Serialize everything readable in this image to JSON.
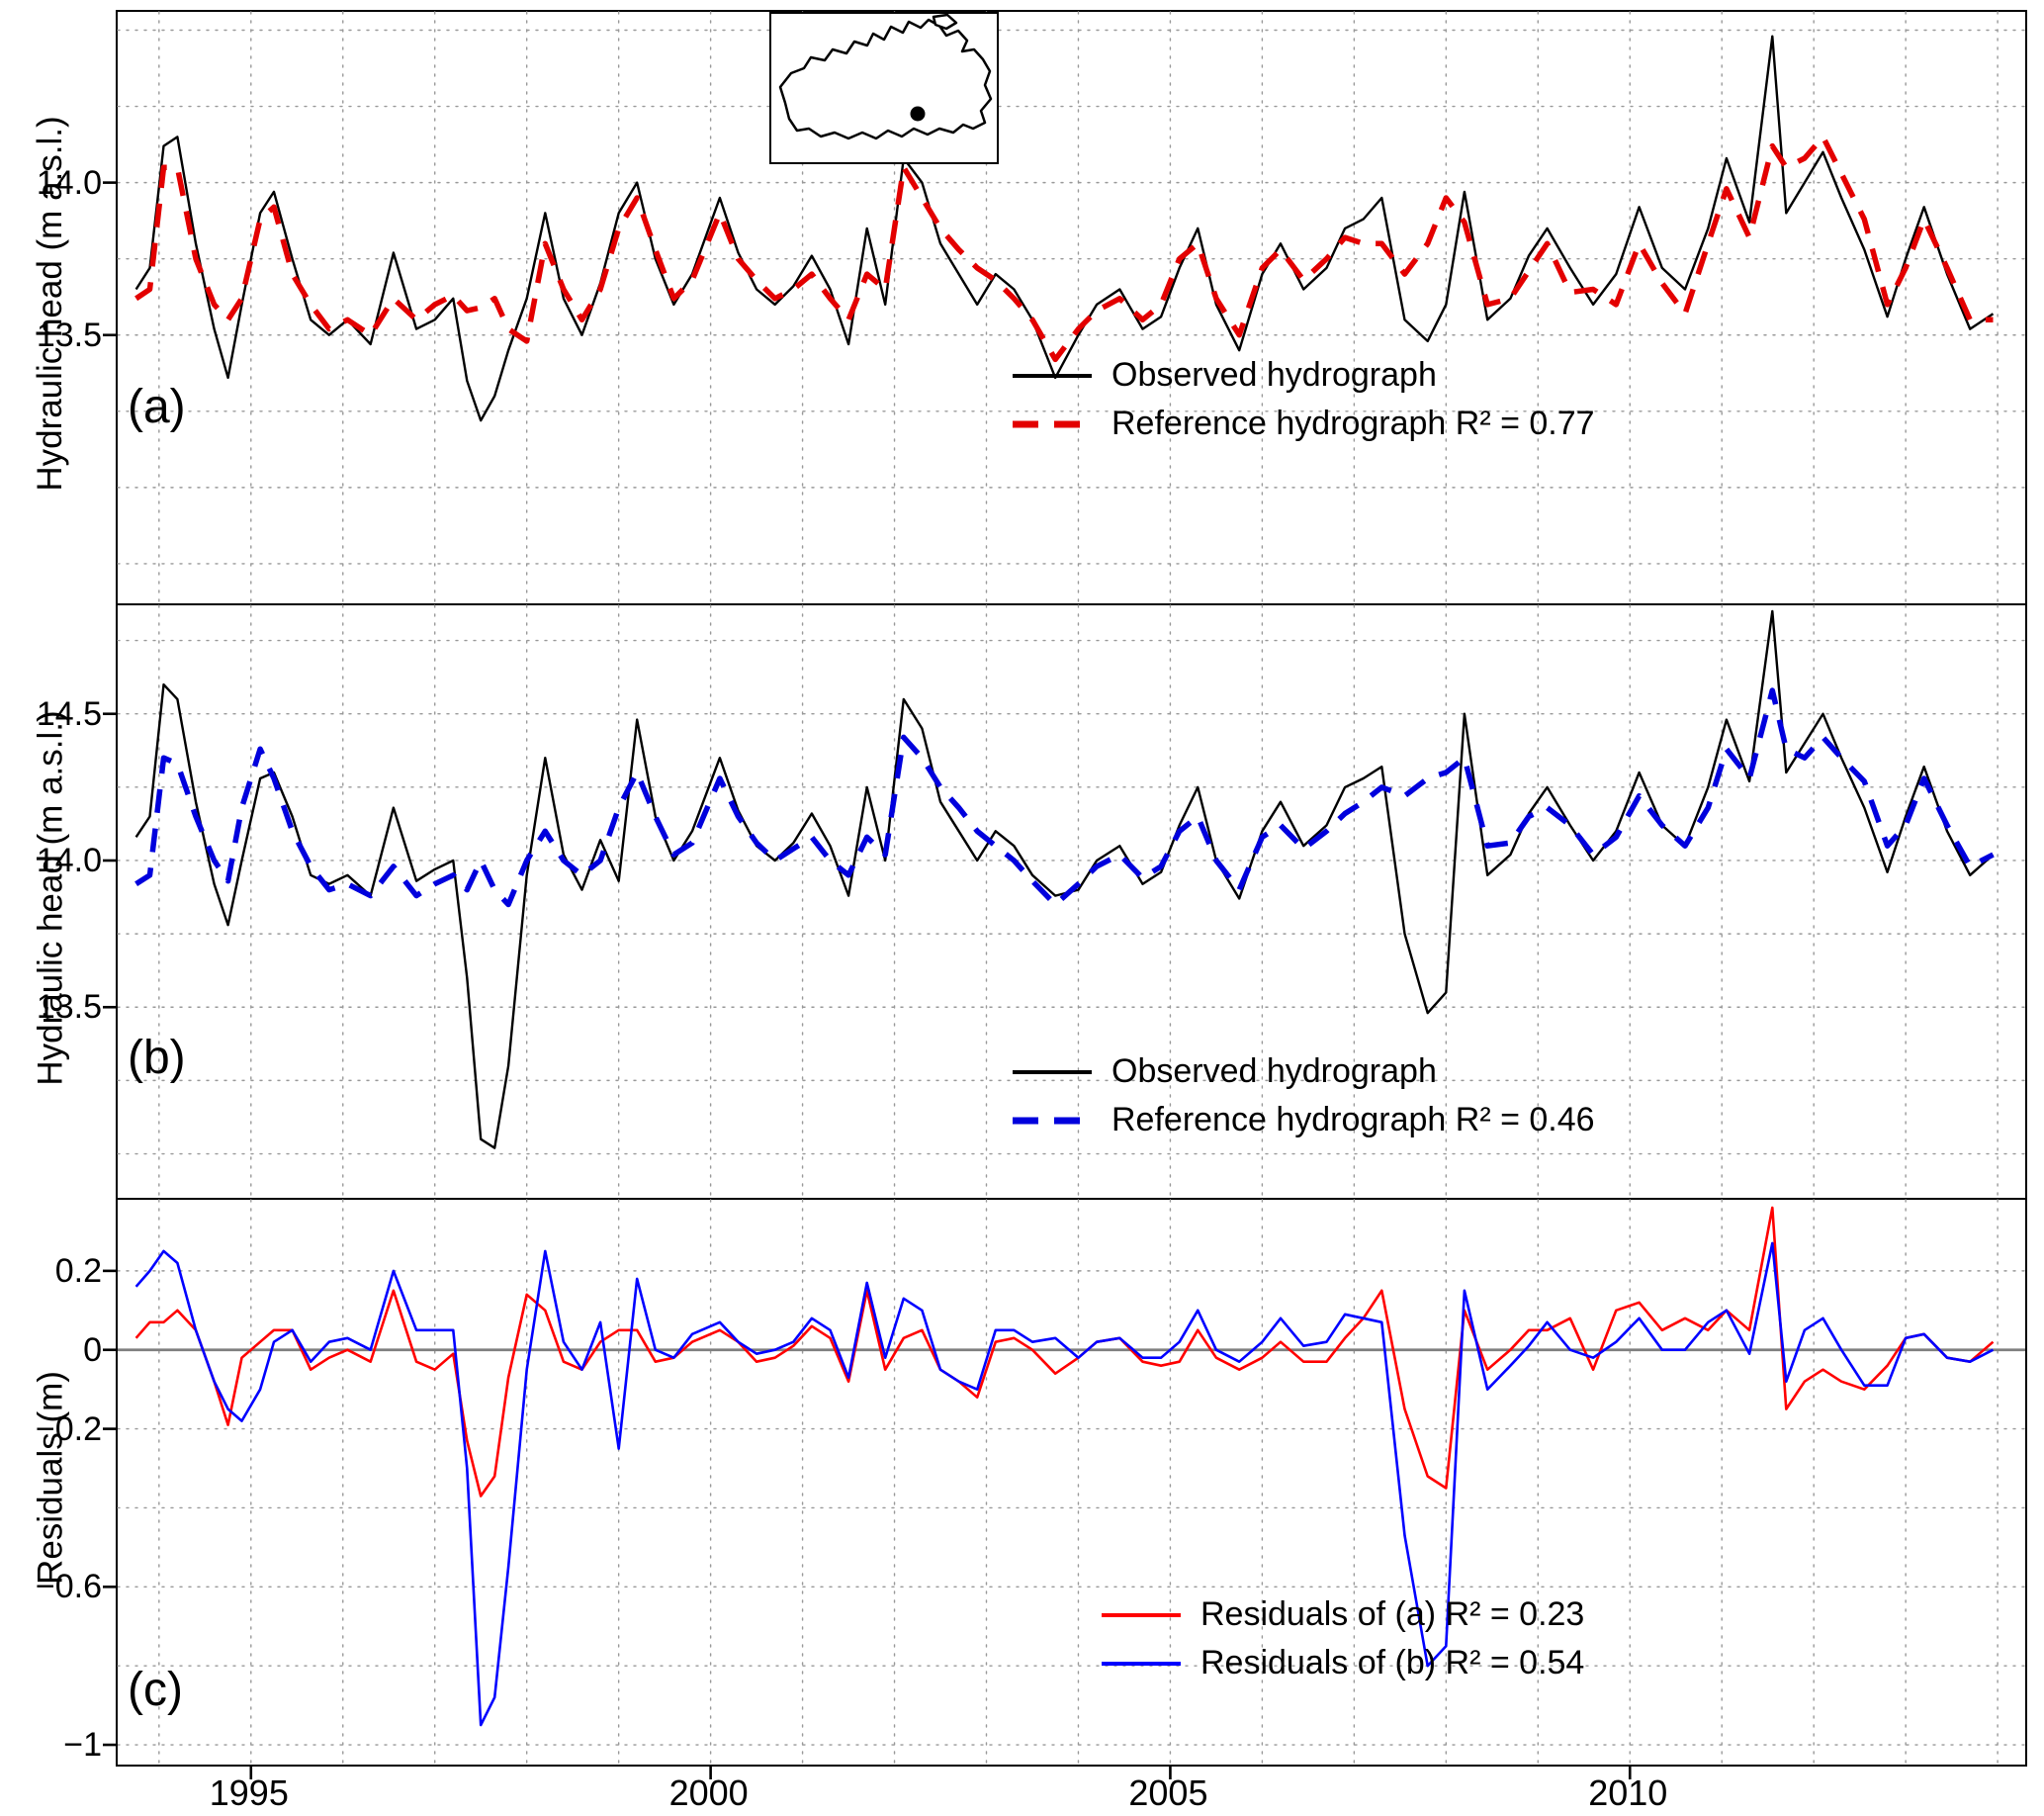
{
  "figure": {
    "grid_color": "#999999",
    "zero_line_color": "#7f7f7f",
    "background": "#ffffff"
  },
  "chart_data": {
    "type": "line",
    "title": "",
    "x_years": [
      1993.75,
      1993.9,
      1994.05,
      1994.2,
      1994.4,
      1994.6,
      1994.75,
      1994.9,
      1995.1,
      1995.25,
      1995.45,
      1995.65,
      1995.85,
      1996.05,
      1996.3,
      1996.55,
      1996.8,
      1997.0,
      1997.2,
      1997.35,
      1997.5,
      1997.65,
      1997.8,
      1998.0,
      1998.2,
      1998.4,
      1998.6,
      1998.8,
      1999.0,
      1999.2,
      1999.4,
      1999.6,
      1999.8,
      2000.1,
      2000.3,
      2000.5,
      2000.7,
      2000.9,
      2001.1,
      2001.3,
      2001.5,
      2001.7,
      2001.9,
      2002.1,
      2002.3,
      2002.5,
      2002.7,
      2002.9,
      2003.1,
      2003.3,
      2003.5,
      2003.75,
      2004.0,
      2004.2,
      2004.45,
      2004.7,
      2004.9,
      2005.1,
      2005.3,
      2005.5,
      2005.75,
      2006.0,
      2006.2,
      2006.45,
      2006.7,
      2006.9,
      2007.1,
      2007.3,
      2007.55,
      2007.8,
      2008.0,
      2008.2,
      2008.45,
      2008.7,
      2008.9,
      2009.1,
      2009.35,
      2009.6,
      2009.85,
      2010.1,
      2010.35,
      2010.6,
      2010.85,
      2011.05,
      2011.3,
      2011.55,
      2011.7,
      2011.9,
      2012.1,
      2012.3,
      2012.55,
      2012.8,
      2013.0,
      2013.2,
      2013.45,
      2013.7,
      2013.95
    ],
    "xlim": [
      1993.55,
      2014.3
    ],
    "grid_years": [
      1994,
      2014
    ],
    "xticks": [
      {
        "v": 1995,
        "label": "1995"
      },
      {
        "v": 2000,
        "label": "2000"
      },
      {
        "v": 2005,
        "label": "2005"
      },
      {
        "v": 2010,
        "label": "2010"
      }
    ],
    "panels": [
      {
        "panel": "a",
        "letter": "(a)",
        "ylabel": "Hydraulic head (m a.s.l.)",
        "ylim": [
          12.62,
          14.56
        ],
        "ygrid_step": 0.25,
        "yticks": [
          {
            "v": 14.0,
            "label": "14.0"
          },
          {
            "v": 13.5,
            "label": "13.5"
          }
        ],
        "zero_line": false,
        "series": [
          {
            "name": "Observed hydrograph",
            "legend": "Observed hydrograph",
            "color": "#000000",
            "style": "solid",
            "width": 2.4,
            "values": [
              13.65,
              13.72,
              14.12,
              14.15,
              13.8,
              13.52,
              13.36,
              13.6,
              13.9,
              13.97,
              13.75,
              13.55,
              13.5,
              13.55,
              13.47,
              13.77,
              13.52,
              13.55,
              13.62,
              13.35,
              13.22,
              13.3,
              13.45,
              13.62,
              13.9,
              13.62,
              13.5,
              13.67,
              13.9,
              14.0,
              13.75,
              13.6,
              13.7,
              13.95,
              13.77,
              13.65,
              13.6,
              13.66,
              13.76,
              13.65,
              13.47,
              13.85,
              13.6,
              14.08,
              14.0,
              13.8,
              13.7,
              13.6,
              13.7,
              13.65,
              13.55,
              13.36,
              13.5,
              13.6,
              13.65,
              13.52,
              13.56,
              13.72,
              13.85,
              13.6,
              13.45,
              13.7,
              13.8,
              13.65,
              13.72,
              13.85,
              13.88,
              13.95,
              13.55,
              13.48,
              13.6,
              13.97,
              13.55,
              13.62,
              13.76,
              13.85,
              13.72,
              13.6,
              13.7,
              13.92,
              13.72,
              13.65,
              13.85,
              14.08,
              13.87,
              14.48,
              13.9,
              14.0,
              14.1,
              13.95,
              13.78,
              13.56,
              13.75,
              13.92,
              13.7,
              13.52,
              13.57
            ]
          },
          {
            "name": "Reference hydrograph",
            "legend": "Reference hydrograph R² = 0.77",
            "r2": 0.77,
            "color": "#e30000",
            "style": "dashed",
            "width": 5.5,
            "values": [
              13.62,
              13.65,
              14.05,
              14.05,
              13.75,
              13.6,
              13.55,
              13.62,
              13.88,
              13.92,
              13.7,
              13.6,
              13.52,
              13.55,
              13.5,
              13.62,
              13.55,
              13.6,
              13.63,
              13.58,
              13.59,
              13.62,
              13.52,
              13.48,
              13.8,
              13.65,
              13.55,
              13.65,
              13.85,
              13.95,
              13.78,
              13.62,
              13.68,
              13.9,
              13.75,
              13.68,
              13.62,
              13.65,
              13.7,
              13.62,
              13.55,
              13.7,
              13.65,
              14.05,
              13.95,
              13.85,
              13.78,
              13.72,
              13.68,
              13.62,
              13.55,
              13.42,
              13.52,
              13.58,
              13.62,
              13.55,
              13.6,
              13.75,
              13.8,
              13.62,
              13.5,
              13.72,
              13.78,
              13.68,
              13.75,
              13.82,
              13.8,
              13.8,
              13.7,
              13.8,
              13.95,
              13.87,
              13.6,
              13.62,
              13.71,
              13.8,
              13.64,
              13.65,
              13.6,
              13.8,
              13.67,
              13.57,
              13.8,
              13.98,
              13.82,
              14.12,
              14.05,
              14.08,
              14.15,
              14.03,
              13.88,
              13.6,
              13.72,
              13.88,
              13.72,
              13.55,
              13.55
            ]
          }
        ]
      },
      {
        "panel": "b",
        "letter": "(b)",
        "ylabel": "Hydraulic head (m a.s.l.)",
        "ylim": [
          12.85,
          14.87
        ],
        "ygrid_step": 0.25,
        "yticks": [
          {
            "v": 14.5,
            "label": "14.5"
          },
          {
            "v": 14.0,
            "label": "14.0"
          },
          {
            "v": 13.5,
            "label": "13.5"
          }
        ],
        "zero_line": false,
        "series": [
          {
            "name": "Observed hydrograph",
            "legend": "Observed hydrograph",
            "color": "#000000",
            "style": "solid",
            "width": 2.4,
            "values": [
              14.08,
              14.15,
              14.6,
              14.55,
              14.2,
              13.92,
              13.78,
              14.0,
              14.28,
              14.3,
              14.15,
              13.95,
              13.92,
              13.95,
              13.88,
              14.18,
              13.93,
              13.97,
              14.0,
              13.6,
              13.05,
              13.02,
              13.3,
              13.95,
              14.35,
              14.02,
              13.9,
              14.07,
              13.93,
              14.48,
              14.15,
              14.0,
              14.1,
              14.35,
              14.17,
              14.05,
              14.0,
              14.06,
              14.16,
              14.05,
              13.88,
              14.25,
              14.0,
              14.55,
              14.45,
              14.2,
              14.1,
              14.0,
              14.1,
              14.05,
              13.95,
              13.88,
              13.9,
              14.0,
              14.05,
              13.92,
              13.96,
              14.12,
              14.25,
              14.0,
              13.87,
              14.1,
              14.2,
              14.05,
              14.12,
              14.25,
              14.28,
              14.32,
              13.75,
              13.48,
              13.55,
              14.5,
              13.95,
              14.02,
              14.16,
              14.25,
              14.12,
              14.0,
              14.1,
              14.3,
              14.12,
              14.05,
              14.25,
              14.48,
              14.27,
              14.85,
              14.3,
              14.4,
              14.5,
              14.35,
              14.18,
              13.96,
              14.15,
              14.32,
              14.1,
              13.95,
              14.02
            ]
          },
          {
            "name": "Reference hydrograph",
            "legend": "Reference hydrograph R² = 0.46",
            "r2": 0.46,
            "color": "#0000dd",
            "style": "dashed",
            "width": 5.5,
            "values": [
              13.92,
              13.95,
              14.35,
              14.33,
              14.15,
              14.0,
              13.93,
              14.18,
              14.38,
              14.28,
              14.1,
              13.98,
              13.9,
              13.92,
              13.88,
              13.98,
              13.88,
              13.92,
              13.95,
              13.9,
              14.0,
              13.9,
              13.85,
              14.0,
              14.1,
              14.0,
              13.95,
              14.0,
              14.18,
              14.3,
              14.15,
              14.02,
              14.06,
              14.28,
              14.15,
              14.06,
              14.0,
              14.04,
              14.08,
              14.0,
              13.95,
              14.08,
              14.02,
              14.42,
              14.35,
              14.25,
              14.18,
              14.1,
              14.05,
              14.0,
              13.93,
              13.85,
              13.92,
              13.98,
              14.02,
              13.94,
              13.98,
              14.1,
              14.15,
              14.0,
              13.9,
              14.08,
              14.12,
              14.04,
              14.1,
              14.16,
              14.2,
              14.25,
              14.22,
              14.28,
              14.3,
              14.35,
              14.05,
              14.06,
              14.15,
              14.18,
              14.12,
              14.02,
              14.08,
              14.22,
              14.12,
              14.05,
              14.18,
              14.38,
              14.28,
              14.58,
              14.38,
              14.35,
              14.42,
              14.35,
              14.27,
              14.05,
              14.12,
              14.28,
              14.12,
              13.98,
              14.02
            ]
          }
        ]
      },
      {
        "panel": "c",
        "letter": "(c)",
        "ylabel": "Residuals (m)",
        "ylim": [
          -1.05,
          0.38
        ],
        "ygrid_step": 0.2,
        "yticks": [
          {
            "v": 0.2,
            "label": "0.2"
          },
          {
            "v": 0,
            "label": "0"
          },
          {
            "v": -0.2,
            "label": "−0.2"
          },
          {
            "v": -0.6,
            "label": "−0.6"
          },
          {
            "v": -1,
            "label": "−1"
          }
        ],
        "zero_line": true,
        "series": [
          {
            "name": "Residuals of (a)",
            "legend": "Residuals of (a) R² = 0.23",
            "r2": 0.23,
            "color": "#ff0000",
            "style": "solid",
            "width": 2.6,
            "values": [
              0.03,
              0.07,
              0.07,
              0.1,
              0.05,
              -0.08,
              -0.19,
              -0.02,
              0.02,
              0.05,
              0.05,
              -0.05,
              -0.02,
              0.0,
              -0.03,
              0.15,
              -0.03,
              -0.05,
              -0.01,
              -0.23,
              -0.37,
              -0.32,
              -0.07,
              0.14,
              0.1,
              -0.03,
              -0.05,
              0.02,
              0.05,
              0.05,
              -0.03,
              -0.02,
              0.02,
              0.05,
              0.02,
              -0.03,
              -0.02,
              0.01,
              0.06,
              0.03,
              -0.08,
              0.15,
              -0.05,
              0.03,
              0.05,
              -0.05,
              -0.08,
              -0.12,
              0.02,
              0.03,
              0.0,
              -0.06,
              -0.02,
              0.02,
              0.03,
              -0.03,
              -0.04,
              -0.03,
              0.05,
              -0.02,
              -0.05,
              -0.02,
              0.02,
              -0.03,
              -0.03,
              0.03,
              0.08,
              0.15,
              -0.15,
              -0.32,
              -0.35,
              0.1,
              -0.05,
              0.0,
              0.05,
              0.05,
              0.08,
              -0.05,
              0.1,
              0.12,
              0.05,
              0.08,
              0.05,
              0.1,
              0.05,
              0.36,
              -0.15,
              -0.08,
              -0.05,
              -0.08,
              -0.1,
              -0.04,
              0.03,
              0.04,
              -0.02,
              -0.03,
              0.02
            ]
          },
          {
            "name": "Residuals of (b)",
            "legend": "Residuals of (b) R² = 0.54",
            "r2": 0.54,
            "color": "#0000ff",
            "style": "solid",
            "width": 2.6,
            "values": [
              0.16,
              0.2,
              0.25,
              0.22,
              0.05,
              -0.08,
              -0.15,
              -0.18,
              -0.1,
              0.02,
              0.05,
              -0.03,
              0.02,
              0.03,
              0.0,
              0.2,
              0.05,
              0.05,
              0.05,
              -0.3,
              -0.95,
              -0.88,
              -0.55,
              -0.05,
              0.25,
              0.02,
              -0.05,
              0.07,
              -0.25,
              0.18,
              0.0,
              -0.02,
              0.04,
              0.07,
              0.02,
              -0.01,
              0.0,
              0.02,
              0.08,
              0.05,
              -0.07,
              0.17,
              -0.02,
              0.13,
              0.1,
              -0.05,
              -0.08,
              -0.1,
              0.05,
              0.05,
              0.02,
              0.03,
              -0.02,
              0.02,
              0.03,
              -0.02,
              -0.02,
              0.02,
              0.1,
              0.0,
              -0.03,
              0.02,
              0.08,
              0.01,
              0.02,
              0.09,
              0.08,
              0.07,
              -0.47,
              -0.8,
              -0.75,
              0.15,
              -0.1,
              -0.04,
              0.01,
              0.07,
              0.0,
              -0.02,
              0.02,
              0.08,
              0.0,
              0.0,
              0.07,
              0.1,
              -0.01,
              0.27,
              -0.08,
              0.05,
              0.08,
              0.0,
              -0.09,
              -0.09,
              0.03,
              0.04,
              -0.02,
              -0.03,
              0.0
            ]
          }
        ]
      }
    ]
  }
}
